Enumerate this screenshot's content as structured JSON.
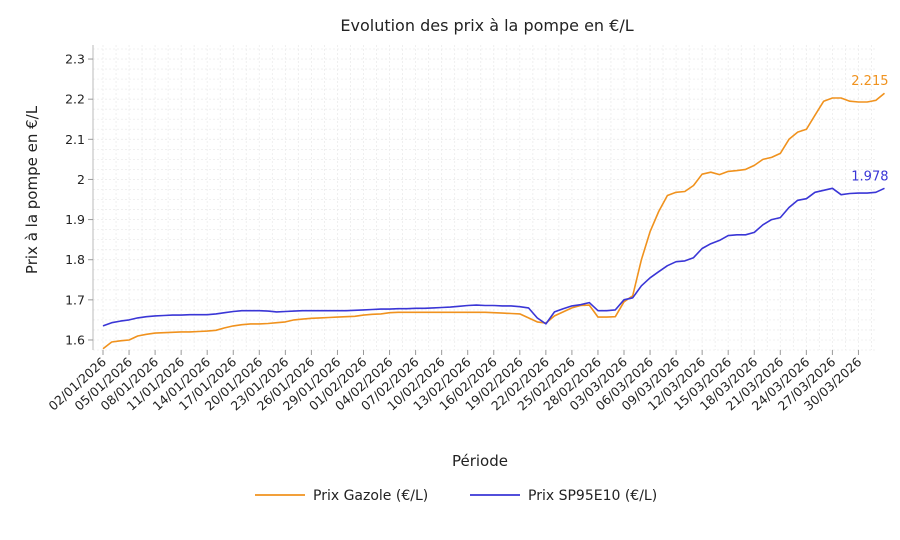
{
  "chart_data": {
    "type": "line",
    "title": "Evolution des prix à la pompe en €/L",
    "xlabel": "Période",
    "ylabel": "Prix à la pompe en €/L",
    "ylim": [
      1.575,
      2.335
    ],
    "yticks": [
      1.6,
      1.7,
      1.8,
      1.9,
      2.0,
      2.1,
      2.2,
      2.3
    ],
    "ytick_labels": [
      "1.6",
      "1.7",
      "1.8",
      "1.9",
      "2",
      "2.1",
      "2.2",
      "2.3"
    ],
    "x_start": "2026-01-02",
    "x_end": "2026-03-30",
    "xtick_labels": [
      "02/01/2026",
      "05/01/2026",
      "08/01/2026",
      "11/01/2026",
      "14/01/2026",
      "17/01/2026",
      "20/01/2026",
      "23/01/2026",
      "26/01/2026",
      "29/01/2026",
      "01/02/2026",
      "04/02/2026",
      "07/02/2026",
      "10/02/2026",
      "13/02/2026",
      "16/02/2026",
      "19/02/2026",
      "22/02/2026",
      "25/02/2026",
      "28/02/2026",
      "03/03/2026",
      "06/03/2026",
      "09/03/2026",
      "12/03/2026",
      "15/03/2026",
      "18/03/2026",
      "21/03/2026",
      "24/03/2026",
      "27/03/2026",
      "30/03/2026"
    ],
    "grid": true,
    "legend": "bottom",
    "series": [
      {
        "name": "Prix Gazole (€/L)",
        "color": "#f0921e",
        "end_label": "2.215",
        "points": [
          [
            "2026-01-02",
            1.578
          ],
          [
            "2026-01-03",
            1.595
          ],
          [
            "2026-01-04",
            1.598
          ],
          [
            "2026-01-05",
            1.6
          ],
          [
            "2026-01-06",
            1.61
          ],
          [
            "2026-01-07",
            1.614
          ],
          [
            "2026-01-08",
            1.617
          ],
          [
            "2026-01-09",
            1.618
          ],
          [
            "2026-01-10",
            1.619
          ],
          [
            "2026-01-11",
            1.62
          ],
          [
            "2026-01-12",
            1.62
          ],
          [
            "2026-01-13",
            1.621
          ],
          [
            "2026-01-14",
            1.622
          ],
          [
            "2026-01-15",
            1.624
          ],
          [
            "2026-01-16",
            1.63
          ],
          [
            "2026-01-17",
            1.635
          ],
          [
            "2026-01-18",
            1.638
          ],
          [
            "2026-01-19",
            1.64
          ],
          [
            "2026-01-20",
            1.64
          ],
          [
            "2026-01-21",
            1.641
          ],
          [
            "2026-01-22",
            1.643
          ],
          [
            "2026-01-23",
            1.645
          ],
          [
            "2026-01-24",
            1.65
          ],
          [
            "2026-01-25",
            1.652
          ],
          [
            "2026-01-26",
            1.654
          ],
          [
            "2026-01-27",
            1.655
          ],
          [
            "2026-01-28",
            1.656
          ],
          [
            "2026-01-29",
            1.657
          ],
          [
            "2026-01-30",
            1.658
          ],
          [
            "2026-01-31",
            1.659
          ],
          [
            "2026-02-01",
            1.662
          ],
          [
            "2026-02-02",
            1.664
          ],
          [
            "2026-02-03",
            1.665
          ],
          [
            "2026-02-04",
            1.668
          ],
          [
            "2026-02-05",
            1.669
          ],
          [
            "2026-02-06",
            1.669
          ],
          [
            "2026-02-07",
            1.669
          ],
          [
            "2026-02-08",
            1.669
          ],
          [
            "2026-02-09",
            1.669
          ],
          [
            "2026-02-10",
            1.669
          ],
          [
            "2026-02-11",
            1.669
          ],
          [
            "2026-02-12",
            1.669
          ],
          [
            "2026-02-13",
            1.669
          ],
          [
            "2026-02-14",
            1.669
          ],
          [
            "2026-02-15",
            1.669
          ],
          [
            "2026-02-16",
            1.668
          ],
          [
            "2026-02-17",
            1.667
          ],
          [
            "2026-02-18",
            1.666
          ],
          [
            "2026-02-19",
            1.665
          ],
          [
            "2026-02-20",
            1.655
          ],
          [
            "2026-02-21",
            1.645
          ],
          [
            "2026-02-22",
            1.642
          ],
          [
            "2026-02-23",
            1.66
          ],
          [
            "2026-02-24",
            1.67
          ],
          [
            "2026-02-25",
            1.68
          ],
          [
            "2026-02-26",
            1.686
          ],
          [
            "2026-02-27",
            1.687
          ],
          [
            "2026-02-28",
            1.657
          ],
          [
            "2026-03-01",
            1.657
          ],
          [
            "2026-03-02",
            1.658
          ],
          [
            "2026-03-03",
            1.695
          ],
          [
            "2026-03-04",
            1.71
          ],
          [
            "2026-03-05",
            1.8
          ],
          [
            "2026-03-06",
            1.87
          ],
          [
            "2026-03-07",
            1.92
          ],
          [
            "2026-03-08",
            1.96
          ],
          [
            "2026-03-09",
            1.968
          ],
          [
            "2026-03-10",
            1.97
          ],
          [
            "2026-03-11",
            1.985
          ],
          [
            "2026-03-12",
            2.013
          ],
          [
            "2026-03-13",
            2.018
          ],
          [
            "2026-03-14",
            2.012
          ],
          [
            "2026-03-15",
            2.02
          ],
          [
            "2026-03-16",
            2.022
          ],
          [
            "2026-03-17",
            2.025
          ],
          [
            "2026-03-18",
            2.035
          ],
          [
            "2026-03-19",
            2.05
          ],
          [
            "2026-03-20",
            2.055
          ],
          [
            "2026-03-21",
            2.065
          ],
          [
            "2026-03-22",
            2.1
          ],
          [
            "2026-03-23",
            2.118
          ],
          [
            "2026-03-24",
            2.125
          ],
          [
            "2026-03-25",
            2.16
          ],
          [
            "2026-03-26",
            2.195
          ],
          [
            "2026-03-27",
            2.203
          ],
          [
            "2026-03-28",
            2.203
          ],
          [
            "2026-03-29",
            2.195
          ],
          [
            "2026-03-30",
            2.193
          ],
          [
            "2026-03-31",
            2.193
          ],
          [
            "2026-04-01",
            2.197
          ],
          [
            "2026-04-02",
            2.215
          ]
        ]
      },
      {
        "name": "Prix SP95E10 (€/L)",
        "color": "#3a36d6",
        "end_label": "1.978",
        "points": [
          [
            "2026-01-02",
            1.635
          ],
          [
            "2026-01-03",
            1.643
          ],
          [
            "2026-01-04",
            1.647
          ],
          [
            "2026-01-05",
            1.65
          ],
          [
            "2026-01-06",
            1.655
          ],
          [
            "2026-01-07",
            1.658
          ],
          [
            "2026-01-08",
            1.66
          ],
          [
            "2026-01-09",
            1.661
          ],
          [
            "2026-01-10",
            1.662
          ],
          [
            "2026-01-11",
            1.662
          ],
          [
            "2026-01-12",
            1.663
          ],
          [
            "2026-01-13",
            1.663
          ],
          [
            "2026-01-14",
            1.663
          ],
          [
            "2026-01-15",
            1.665
          ],
          [
            "2026-01-16",
            1.668
          ],
          [
            "2026-01-17",
            1.671
          ],
          [
            "2026-01-18",
            1.673
          ],
          [
            "2026-01-19",
            1.673
          ],
          [
            "2026-01-20",
            1.673
          ],
          [
            "2026-01-21",
            1.672
          ],
          [
            "2026-01-22",
            1.67
          ],
          [
            "2026-01-23",
            1.671
          ],
          [
            "2026-01-24",
            1.672
          ],
          [
            "2026-01-25",
            1.673
          ],
          [
            "2026-01-26",
            1.673
          ],
          [
            "2026-01-27",
            1.673
          ],
          [
            "2026-01-28",
            1.673
          ],
          [
            "2026-01-29",
            1.673
          ],
          [
            "2026-01-30",
            1.673
          ],
          [
            "2026-01-31",
            1.674
          ],
          [
            "2026-02-01",
            1.675
          ],
          [
            "2026-02-02",
            1.676
          ],
          [
            "2026-02-03",
            1.677
          ],
          [
            "2026-02-04",
            1.677
          ],
          [
            "2026-02-05",
            1.678
          ],
          [
            "2026-02-06",
            1.678
          ],
          [
            "2026-02-07",
            1.679
          ],
          [
            "2026-02-08",
            1.679
          ],
          [
            "2026-02-09",
            1.68
          ],
          [
            "2026-02-10",
            1.681
          ],
          [
            "2026-02-11",
            1.682
          ],
          [
            "2026-02-12",
            1.684
          ],
          [
            "2026-02-13",
            1.686
          ],
          [
            "2026-02-14",
            1.687
          ],
          [
            "2026-02-15",
            1.686
          ],
          [
            "2026-02-16",
            1.686
          ],
          [
            "2026-02-17",
            1.685
          ],
          [
            "2026-02-18",
            1.685
          ],
          [
            "2026-02-19",
            1.683
          ],
          [
            "2026-02-20",
            1.68
          ],
          [
            "2026-02-21",
            1.655
          ],
          [
            "2026-02-22",
            1.64
          ],
          [
            "2026-02-23",
            1.67
          ],
          [
            "2026-02-24",
            1.678
          ],
          [
            "2026-02-25",
            1.685
          ],
          [
            "2026-02-26",
            1.688
          ],
          [
            "2026-02-27",
            1.693
          ],
          [
            "2026-02-28",
            1.673
          ],
          [
            "2026-03-01",
            1.673
          ],
          [
            "2026-03-02",
            1.675
          ],
          [
            "2026-03-03",
            1.7
          ],
          [
            "2026-03-04",
            1.705
          ],
          [
            "2026-03-05",
            1.735
          ],
          [
            "2026-03-06",
            1.755
          ],
          [
            "2026-03-07",
            1.77
          ],
          [
            "2026-03-08",
            1.785
          ],
          [
            "2026-03-09",
            1.795
          ],
          [
            "2026-03-10",
            1.797
          ],
          [
            "2026-03-11",
            1.805
          ],
          [
            "2026-03-12",
            1.828
          ],
          [
            "2026-03-13",
            1.84
          ],
          [
            "2026-03-14",
            1.848
          ],
          [
            "2026-03-15",
            1.86
          ],
          [
            "2026-03-16",
            1.862
          ],
          [
            "2026-03-17",
            1.862
          ],
          [
            "2026-03-18",
            1.868
          ],
          [
            "2026-03-19",
            1.887
          ],
          [
            "2026-03-20",
            1.9
          ],
          [
            "2026-03-21",
            1.905
          ],
          [
            "2026-03-22",
            1.93
          ],
          [
            "2026-03-23",
            1.948
          ],
          [
            "2026-03-24",
            1.952
          ],
          [
            "2026-03-25",
            1.968
          ],
          [
            "2026-03-26",
            1.973
          ],
          [
            "2026-03-27",
            1.978
          ],
          [
            "2026-03-28",
            1.962
          ],
          [
            "2026-03-29",
            1.965
          ],
          [
            "2026-03-30",
            1.966
          ],
          [
            "2026-03-31",
            1.966
          ],
          [
            "2026-04-01",
            1.968
          ],
          [
            "2026-04-02",
            1.978
          ]
        ]
      }
    ]
  }
}
